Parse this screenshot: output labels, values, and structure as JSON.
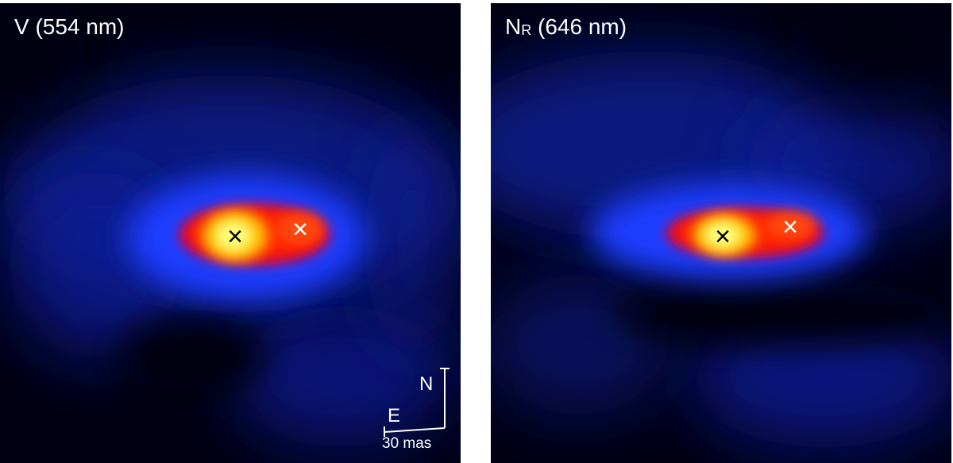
{
  "panels": [
    {
      "label_main": "V (554 nm)",
      "markers": [
        {
          "symbol": "×",
          "color": "#000000"
        },
        {
          "symbol": "×",
          "color": "#ffffff"
        }
      ]
    },
    {
      "label_main": "N",
      "label_sub": "R",
      "label_rest": " (646 nm)",
      "markers": [
        {
          "symbol": "×",
          "color": "#000000"
        },
        {
          "symbol": "×",
          "color": "#ffffff"
        }
      ]
    }
  ],
  "compass": {
    "north": "N",
    "east": "E",
    "scale_label": "30 mas"
  },
  "colors": {
    "background": "#00001a",
    "halo": "#1a3cff",
    "core_red": "#ff1a00",
    "core_yellow": "#ffff66"
  }
}
